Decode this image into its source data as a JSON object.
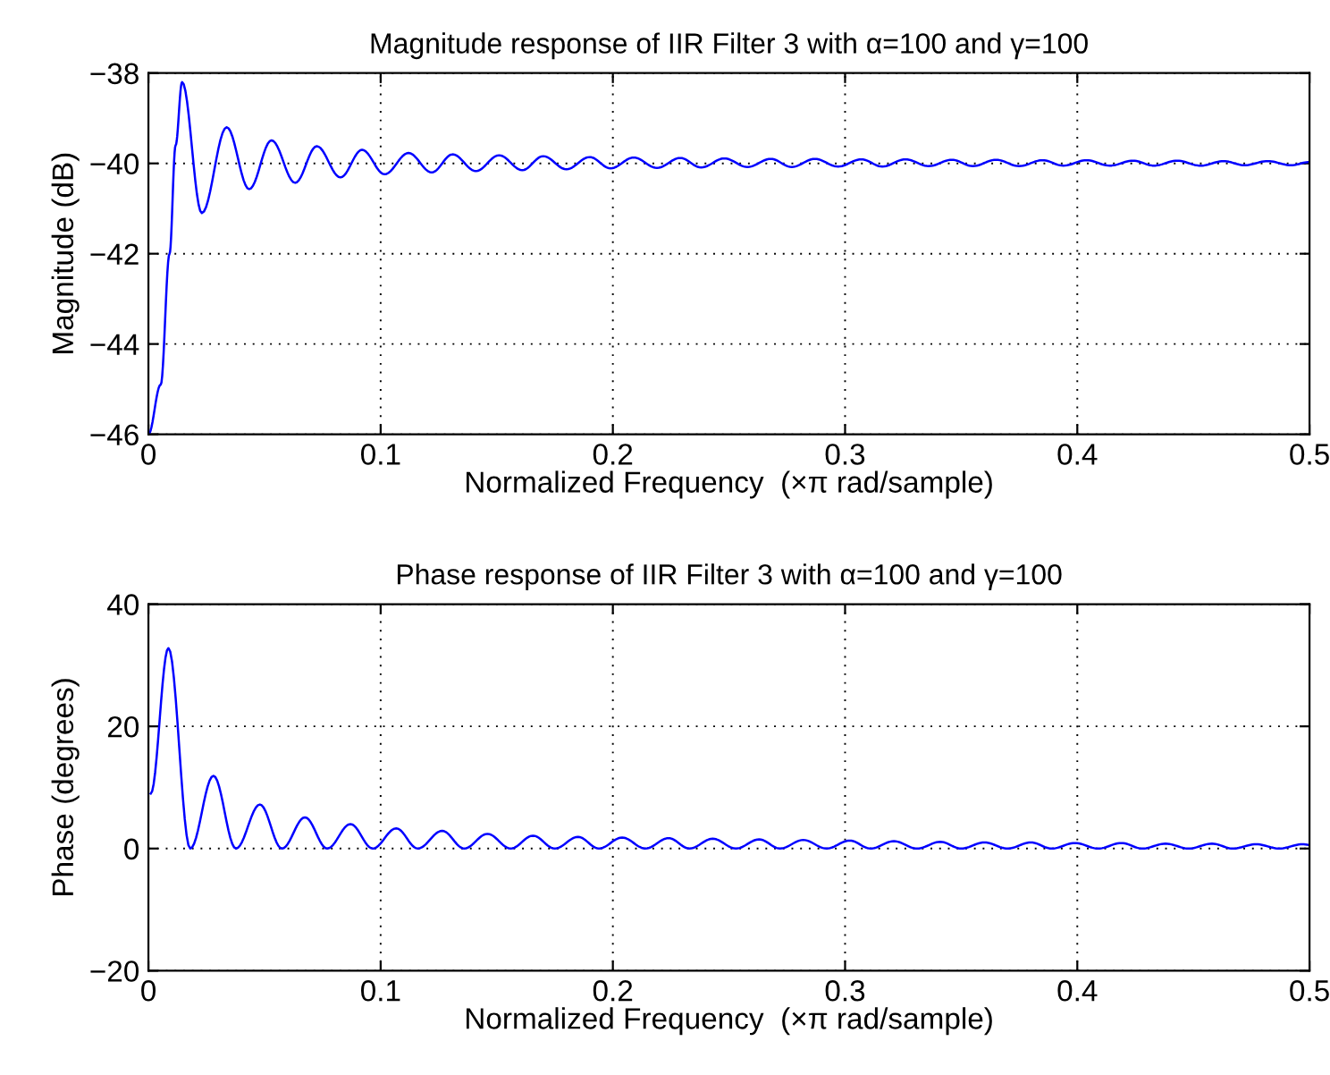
{
  "chart_data": [
    {
      "type": "line",
      "title": "Magnitude response of IIR Filter 3 with α=100 and γ=100",
      "xlabel": "Normalized Frequency  (×π rad/sample)",
      "ylabel": "Magnitude (dB)",
      "xlim": [
        0,
        0.5
      ],
      "ylim": [
        -46,
        -38
      ],
      "xticks": [
        0,
        0.1,
        0.2,
        0.3,
        0.4,
        0.5
      ],
      "yticks": [
        -46,
        -44,
        -42,
        -40,
        -38
      ],
      "grid": true,
      "line_style": "solid",
      "marker": "none",
      "series": [
        {
          "color": "#0000ff",
          "x": [
            0,
            0.0053,
            0.0091,
            0.0117,
            0.0145,
            0.023,
            0.0337,
            0.0434,
            0.053,
            0.0632,
            0.0725,
            0.0827,
            0.092,
            0.1017,
            0.112,
            0.122,
            0.131,
            0.141,
            0.151,
            0.161,
            0.17,
            0.18,
            0.19,
            0.199,
            0.209,
            0.219,
            0.229,
            0.238,
            0.248,
            0.258,
            0.268,
            0.277,
            0.287,
            0.297,
            0.307,
            0.316,
            0.326,
            0.336,
            0.346,
            0.355,
            0.365,
            0.375,
            0.385,
            0.394,
            0.404,
            0.414,
            0.424,
            0.433,
            0.443,
            0.453,
            0.463,
            0.472,
            0.482,
            0.492,
            0.5
          ],
          "values": [
            -46,
            -44.9,
            -42,
            -39.6,
            -38.2,
            -41.1,
            -39.2,
            -40.57,
            -39.49,
            -40.43,
            -39.62,
            -40.31,
            -39.7,
            -40.24,
            -39.77,
            -40.2,
            -39.8,
            -40.17,
            -39.82,
            -40.15,
            -39.84,
            -40.13,
            -39.86,
            -40.11,
            -39.87,
            -40.1,
            -39.88,
            -40.09,
            -39.89,
            -40.08,
            -39.9,
            -40.08,
            -39.9,
            -40.07,
            -39.91,
            -40.07,
            -39.91,
            -40.06,
            -39.92,
            -40.06,
            -39.92,
            -40.06,
            -39.93,
            -40.05,
            -39.93,
            -40.05,
            -39.94,
            -40.05,
            -39.94,
            -40.05,
            -39.95,
            -40.04,
            -39.95,
            -40.04,
            -39.97
          ]
        }
      ]
    },
    {
      "type": "line",
      "title": "Phase response of IIR Filter 3 with α=100 and γ=100",
      "xlabel": "Normalized Frequency  (×π rad/sample)",
      "ylabel": "Phase (degrees)",
      "xlim": [
        0,
        0.5
      ],
      "ylim": [
        -20,
        40
      ],
      "xticks": [
        0,
        0.1,
        0.2,
        0.3,
        0.4,
        0.5
      ],
      "yticks": [
        -20,
        0,
        20,
        40
      ],
      "grid": true,
      "line_style": "solid",
      "marker": "none",
      "series": [
        {
          "color": "#0000ff",
          "x": [
            0.001,
            0.0086,
            0.018,
            0.028,
            0.0377,
            0.048,
            0.0575,
            0.0674,
            0.077,
            0.087,
            0.0966,
            0.1067,
            0.116,
            0.1265,
            0.136,
            0.146,
            0.156,
            0.1656,
            0.175,
            0.185,
            0.194,
            0.204,
            0.214,
            0.224,
            0.233,
            0.243,
            0.253,
            0.263,
            0.272,
            0.282,
            0.292,
            0.302,
            0.311,
            0.321,
            0.331,
            0.341,
            0.35,
            0.36,
            0.37,
            0.38,
            0.389,
            0.399,
            0.409,
            0.419,
            0.428,
            0.438,
            0.448,
            0.458,
            0.467,
            0.477,
            0.487,
            0.497,
            0.5
          ],
          "values": [
            9,
            32.8,
            0,
            11.9,
            0,
            7.2,
            0,
            5.1,
            0,
            4.0,
            0,
            3.3,
            0,
            2.9,
            0,
            2.4,
            0,
            2.1,
            0,
            1.9,
            0,
            1.8,
            0,
            1.7,
            0,
            1.6,
            0,
            1.5,
            0,
            1.4,
            0,
            1.3,
            0,
            1.2,
            0,
            1.1,
            0,
            1.0,
            0,
            1.0,
            0,
            0.9,
            0,
            0.9,
            0,
            0.8,
            0,
            0.8,
            0,
            0.7,
            0,
            0.7,
            0.6
          ]
        }
      ]
    }
  ]
}
